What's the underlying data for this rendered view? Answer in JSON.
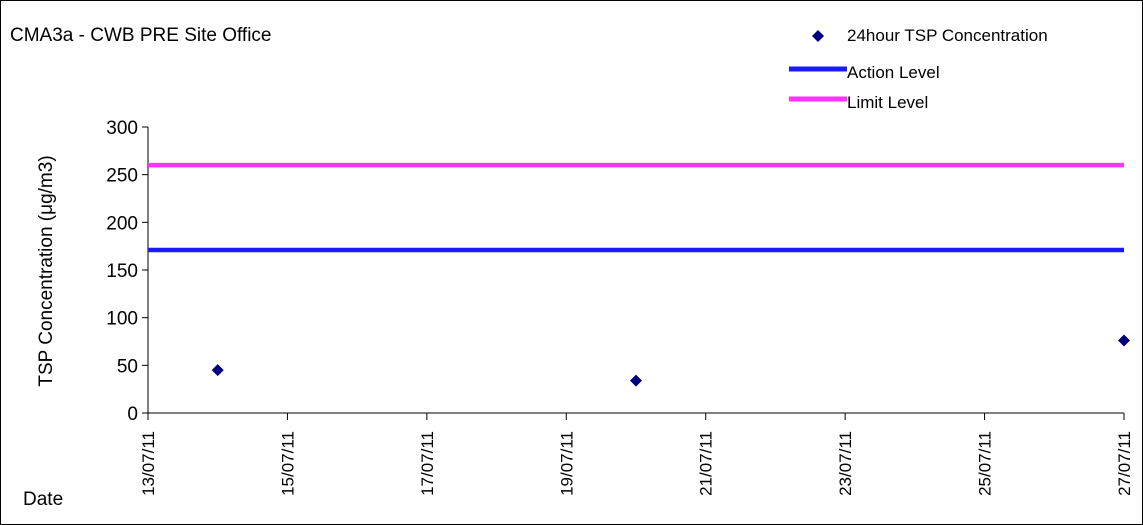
{
  "chart_data": {
    "type": "scatter",
    "title": "CMA3a - CWB PRE Site Office",
    "xlabel": "Date",
    "ylabel": "TSP Concentration (μg/m3)",
    "ylim": [
      0,
      300
    ],
    "yticks": [
      0,
      50,
      100,
      150,
      200,
      250,
      300
    ],
    "xlim": [
      "13/07/11",
      "27/07/11"
    ],
    "xticks": [
      "13/07/11",
      "15/07/11",
      "17/07/11",
      "19/07/11",
      "21/07/11",
      "23/07/11",
      "25/07/11",
      "27/07/11"
    ],
    "grid": false,
    "legend_position": "top-right",
    "series": [
      {
        "name": "24hour TSP Concentration",
        "type": "scatter",
        "marker": "diamond",
        "color": "#000080",
        "points": [
          {
            "x": "14/07/11",
            "y": 45
          },
          {
            "x": "20/07/11",
            "y": 34
          },
          {
            "x": "27/07/11",
            "y": 76
          }
        ]
      },
      {
        "name": "Action Level",
        "type": "line",
        "color": "#1a1aff",
        "points": [
          {
            "x": "13/07/11",
            "y": 171
          },
          {
            "x": "27/07/11",
            "y": 171
          }
        ]
      },
      {
        "name": "Limit Level",
        "type": "line",
        "color": "#ff33ff",
        "points": [
          {
            "x": "13/07/11",
            "y": 260
          },
          {
            "x": "27/07/11",
            "y": 260
          }
        ]
      }
    ]
  }
}
